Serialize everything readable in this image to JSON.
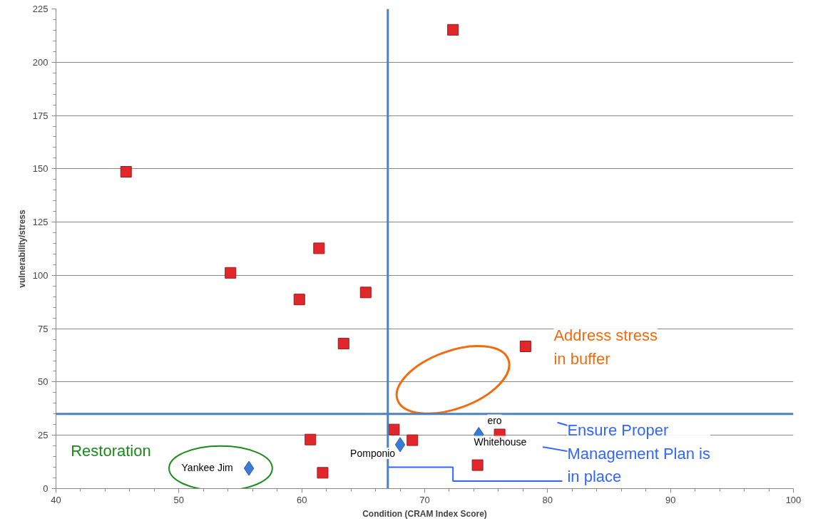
{
  "chart_data": {
    "type": "scatter",
    "xlabel": "Condition (CRAM Index Score)",
    "ylabel": "vulnerability/stress",
    "xlim": [
      40,
      100
    ],
    "ylim": [
      0,
      225
    ],
    "xticks": [
      40,
      50,
      60,
      70,
      80,
      90,
      100
    ],
    "yticks": [
      0,
      25,
      50,
      75,
      100,
      125,
      150,
      175,
      200,
      225
    ],
    "grid": "y",
    "series": [
      {
        "color": "#e0282c",
        "marker": "square",
        "x": [
          45.7,
          72.3,
          54.2,
          61.4,
          59.8,
          65.2,
          63.4,
          78.2,
          60.7,
          61.7,
          69.0,
          76.1,
          74.3,
          67.5
        ],
        "values": [
          148.6,
          215.2,
          101.2,
          112.7,
          88.7,
          92,
          68,
          66.7,
          23,
          7.4,
          22.7,
          25.4,
          11,
          27.7
        ]
      },
      {
        "color": "#3a7bd5",
        "marker": "diamond",
        "x": [
          55.7,
          68.0,
          74.4
        ],
        "values": [
          9.5,
          20.6,
          25.4
        ]
      }
    ],
    "ref_lines": [
      {
        "axis": "x",
        "value": 67,
        "color": "#4f81bd"
      },
      {
        "axis": "y",
        "value": 35,
        "color": "#4f81bd"
      }
    ],
    "annotations": [
      {
        "text": "Yankee Jim",
        "x": 55.7,
        "y": 9.5
      },
      {
        "text": "Pomponio",
        "x": 68.0,
        "y": 20.6
      },
      {
        "text": "Whitehouse",
        "x": 74.4,
        "y": 25.4
      },
      {
        "text": "ero",
        "x": 76.1,
        "y": 25.4
      },
      "Address stress\nin buffer",
      {
        "text": "Ensure Proper\nManagement Plan is\nin place",
        "x": 67,
        "y": 10
      },
      "Restoration"
    ]
  }
}
